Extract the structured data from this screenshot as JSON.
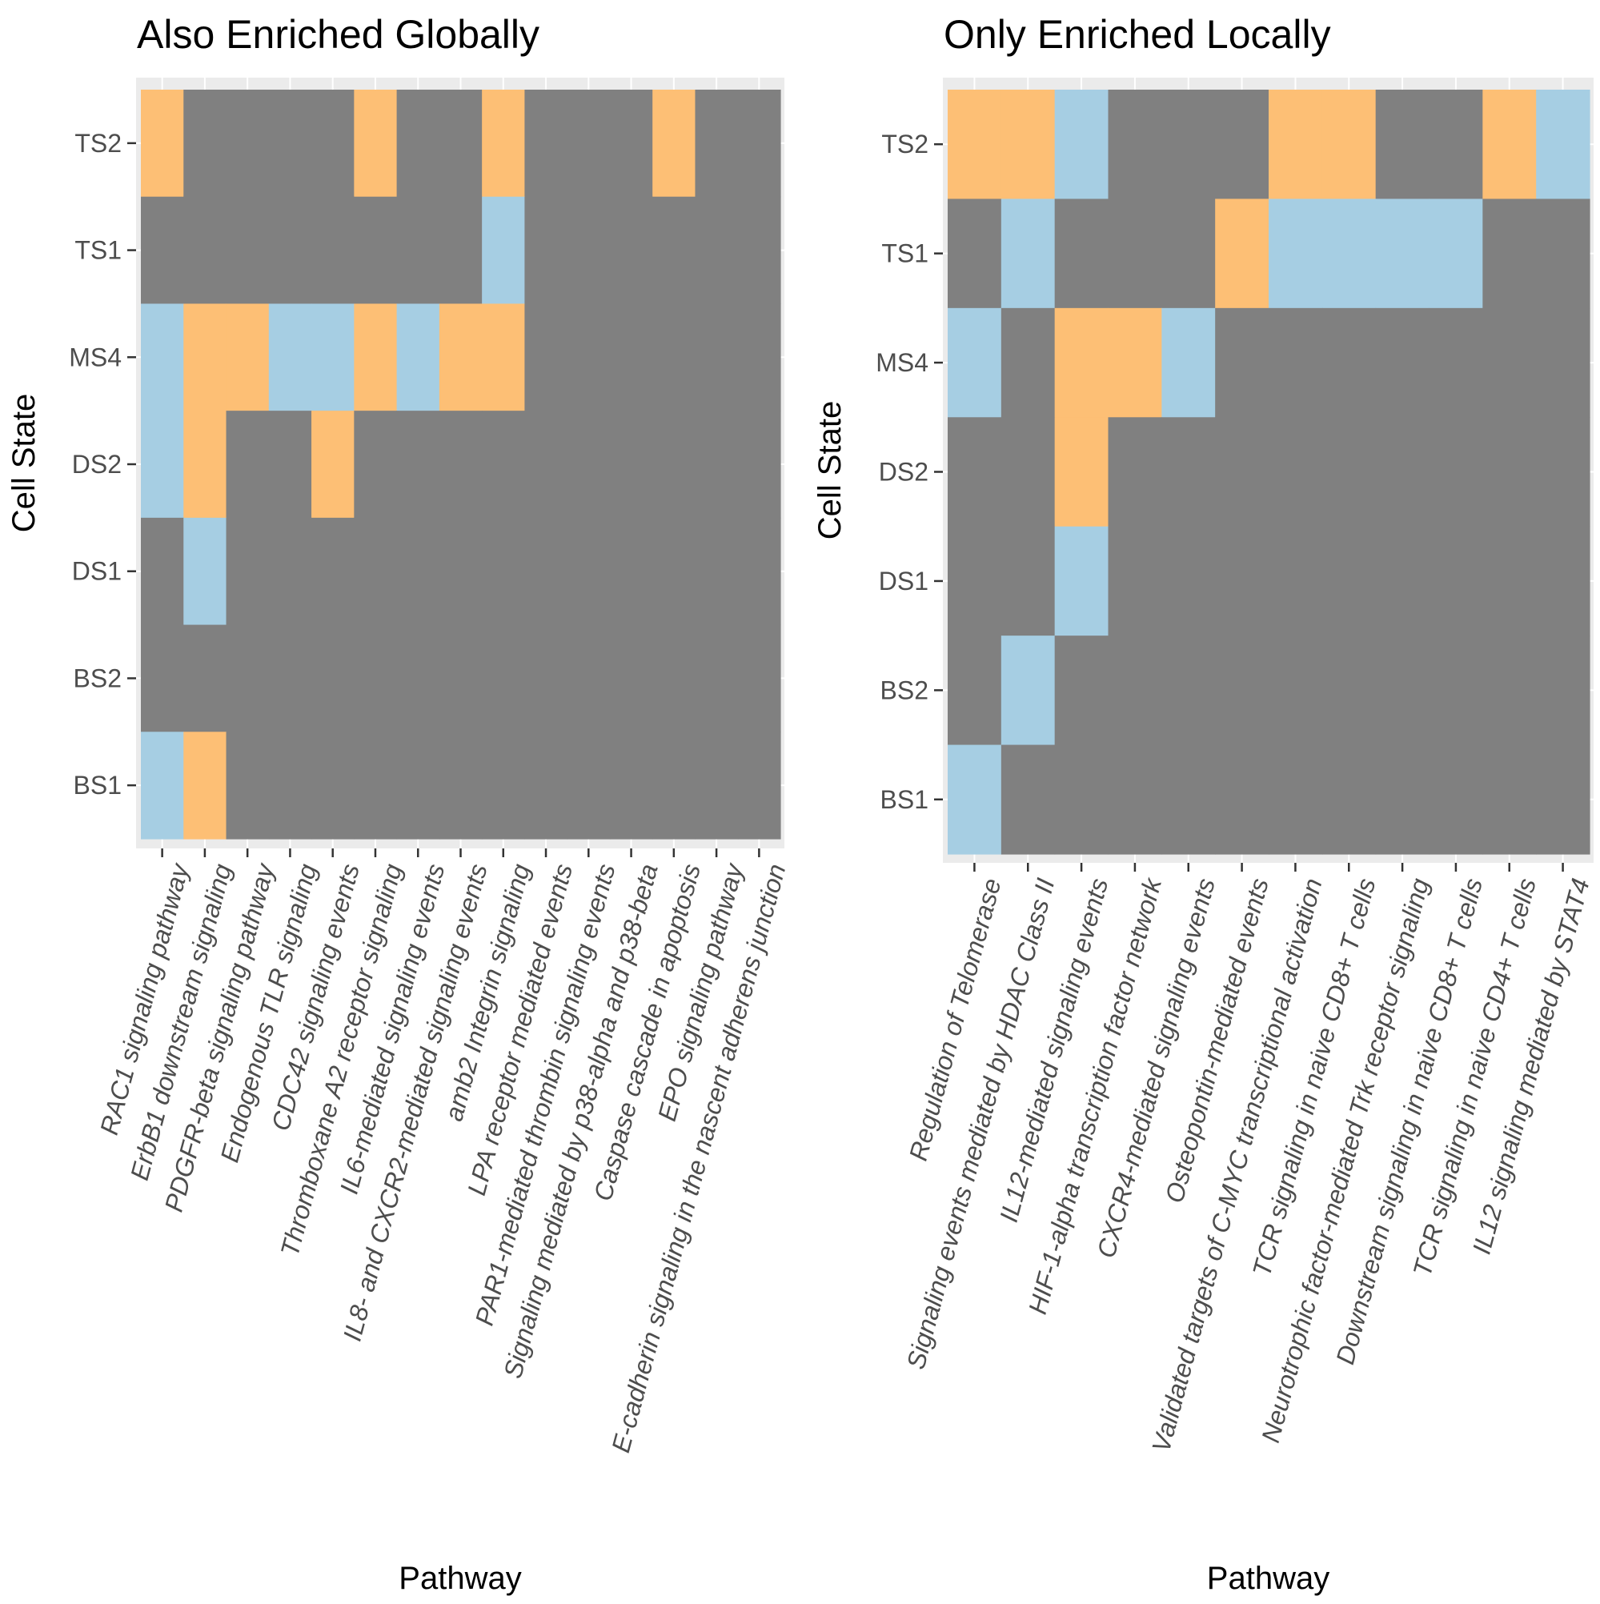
{
  "chart_data": [
    {
      "type": "heatmap",
      "title": "Also Enriched Globally",
      "xlabel": "Pathway",
      "ylabel": "Cell State",
      "grid": true,
      "legend": "none",
      "colors": {
        "0": "#808080",
        "1": "#fdbf75",
        "2": "#a6cee3",
        "panel_bg": "#ebebeb",
        "grid": "#ffffff"
      },
      "y_categories": [
        "TS2",
        "TS1",
        "MS4",
        "DS2",
        "DS1",
        "BS2",
        "BS1"
      ],
      "x_categories": [
        "RAC1 signaling pathway",
        "ErbB1 downstream signaling",
        "PDGFR-beta signaling pathway",
        "Endogenous TLR signaling",
        "CDC42 signaling events",
        "Thromboxane A2 receptor signaling",
        "IL6-mediated signaling events",
        "IL8- and CXCR2-mediated signaling events",
        "amb2 Integrin signaling",
        "LPA receptor mediated events",
        "PAR1-mediated thrombin signaling events",
        "Signaling mediated by p38-alpha and p38-beta",
        "Caspase cascade in apoptosis",
        "EPO signaling pathway",
        "E-cadherin signaling in the nascent adherens junction"
      ],
      "values": [
        [
          1,
          0,
          0,
          0,
          0,
          1,
          0,
          0,
          1,
          0,
          0,
          0,
          1,
          0,
          0
        ],
        [
          0,
          0,
          0,
          0,
          0,
          0,
          0,
          0,
          2,
          0,
          0,
          0,
          0,
          0,
          0
        ],
        [
          2,
          1,
          1,
          2,
          2,
          1,
          2,
          1,
          1,
          0,
          0,
          0,
          0,
          0,
          0
        ],
        [
          2,
          1,
          0,
          0,
          1,
          0,
          0,
          0,
          0,
          0,
          0,
          0,
          0,
          0,
          0
        ],
        [
          0,
          2,
          0,
          0,
          0,
          0,
          0,
          0,
          0,
          0,
          0,
          0,
          0,
          0,
          0
        ],
        [
          0,
          0,
          0,
          0,
          0,
          0,
          0,
          0,
          0,
          0,
          0,
          0,
          0,
          0,
          0
        ],
        [
          2,
          1,
          0,
          0,
          0,
          0,
          0,
          0,
          0,
          0,
          0,
          0,
          0,
          0,
          0
        ]
      ]
    },
    {
      "type": "heatmap",
      "title": "Only Enriched Locally",
      "xlabel": "Pathway",
      "ylabel": "Cell State",
      "grid": true,
      "legend": "none",
      "colors": {
        "0": "#808080",
        "1": "#fdbf75",
        "2": "#a6cee3",
        "panel_bg": "#ebebeb",
        "grid": "#ffffff"
      },
      "y_categories": [
        "TS2",
        "TS1",
        "MS4",
        "DS2",
        "DS1",
        "BS2",
        "BS1"
      ],
      "x_categories": [
        "Regulation of Telomerase",
        "Signaling events mediated by HDAC Class II",
        "IL12-mediated signaling events",
        "HIF-1-alpha transcription factor network",
        "CXCR4-mediated signaling events",
        "Osteopontin-mediated events",
        "Validated targets of C-MYC transcriptional activation",
        "TCR signaling in naive CD8+ T cells",
        "Neurotrophic factor-mediated Trk receptor signaling",
        "Downstream signaling in naive CD8+ T cells",
        "TCR signaling in naive CD4+ T cells",
        "IL12 signaling mediated by STAT4"
      ],
      "values": [
        [
          1,
          1,
          2,
          0,
          0,
          0,
          1,
          1,
          0,
          0,
          1,
          2
        ],
        [
          0,
          2,
          0,
          0,
          0,
          1,
          2,
          2,
          2,
          2,
          0,
          0
        ],
        [
          2,
          0,
          1,
          1,
          2,
          0,
          0,
          0,
          0,
          0,
          0,
          0
        ],
        [
          0,
          0,
          1,
          0,
          0,
          0,
          0,
          0,
          0,
          0,
          0,
          0
        ],
        [
          0,
          0,
          2,
          0,
          0,
          0,
          0,
          0,
          0,
          0,
          0,
          0
        ],
        [
          0,
          2,
          0,
          0,
          0,
          0,
          0,
          0,
          0,
          0,
          0,
          0
        ],
        [
          2,
          0,
          0,
          0,
          0,
          0,
          0,
          0,
          0,
          0,
          0,
          0
        ]
      ]
    }
  ]
}
